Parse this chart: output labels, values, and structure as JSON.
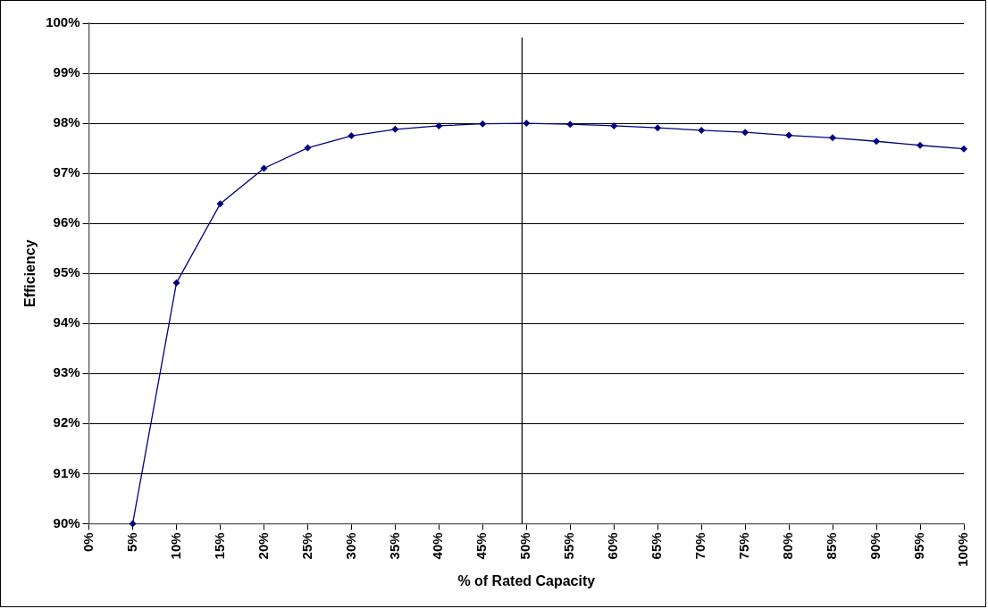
{
  "chart_data": {
    "type": "line",
    "xlabel": "% of Rated Capacity",
    "ylabel": "Efficiency",
    "x": [
      5,
      10,
      15,
      20,
      25,
      30,
      35,
      40,
      45,
      50,
      55,
      60,
      65,
      70,
      75,
      80,
      85,
      90,
      95,
      100
    ],
    "series": [
      {
        "color": "#000080",
        "values": [
          90,
          94.81,
          96.39,
          97.1,
          97.51,
          97.75,
          97.88,
          97.95,
          97.99,
          98.0,
          97.98,
          97.95,
          97.91,
          97.86,
          97.82,
          97.76,
          97.71,
          97.64,
          97.56,
          97.49
        ]
      }
    ],
    "xlim": [
      0,
      100
    ],
    "xticks": [
      {
        "value": 0,
        "label": "0%"
      },
      {
        "value": 5,
        "label": "5%"
      },
      {
        "value": 10,
        "label": "10%"
      },
      {
        "value": 15,
        "label": "15%"
      },
      {
        "value": 20,
        "label": "20%"
      },
      {
        "value": 25,
        "label": "25%"
      },
      {
        "value": 30,
        "label": "30%"
      },
      {
        "value": 35,
        "label": "35%"
      },
      {
        "value": 40,
        "label": "40%"
      },
      {
        "value": 45,
        "label": "45%"
      },
      {
        "value": 50,
        "label": "50%"
      },
      {
        "value": 55,
        "label": "55%"
      },
      {
        "value": 60,
        "label": "60%"
      },
      {
        "value": 65,
        "label": "65%"
      },
      {
        "value": 70,
        "label": "70%"
      },
      {
        "value": 75,
        "label": "75%"
      },
      {
        "value": 80,
        "label": "80%"
      },
      {
        "value": 85,
        "label": "85%"
      },
      {
        "value": 90,
        "label": "90%"
      },
      {
        "value": 95,
        "label": "95%"
      },
      {
        "value": 100,
        "label": "100%"
      }
    ],
    "ylim": [
      90,
      100
    ],
    "yticks": [
      {
        "value": 90,
        "label": "90%"
      },
      {
        "value": 91,
        "label": "91%"
      },
      {
        "value": 92,
        "label": "92%"
      },
      {
        "value": 93,
        "label": "93%"
      },
      {
        "value": 94,
        "label": "94%"
      },
      {
        "value": 95,
        "label": "95%"
      },
      {
        "value": 96,
        "label": "96%"
      },
      {
        "value": 97,
        "label": "97%"
      },
      {
        "value": 98,
        "label": "98%"
      },
      {
        "value": 99,
        "label": "99%"
      },
      {
        "value": 100,
        "label": "100%"
      }
    ],
    "ref_lines": [
      {
        "axis": "x",
        "value": 49.5,
        "color": "#000000"
      }
    ],
    "grid": "y",
    "legend": false,
    "marker": "diamond",
    "line_style": "solid"
  }
}
